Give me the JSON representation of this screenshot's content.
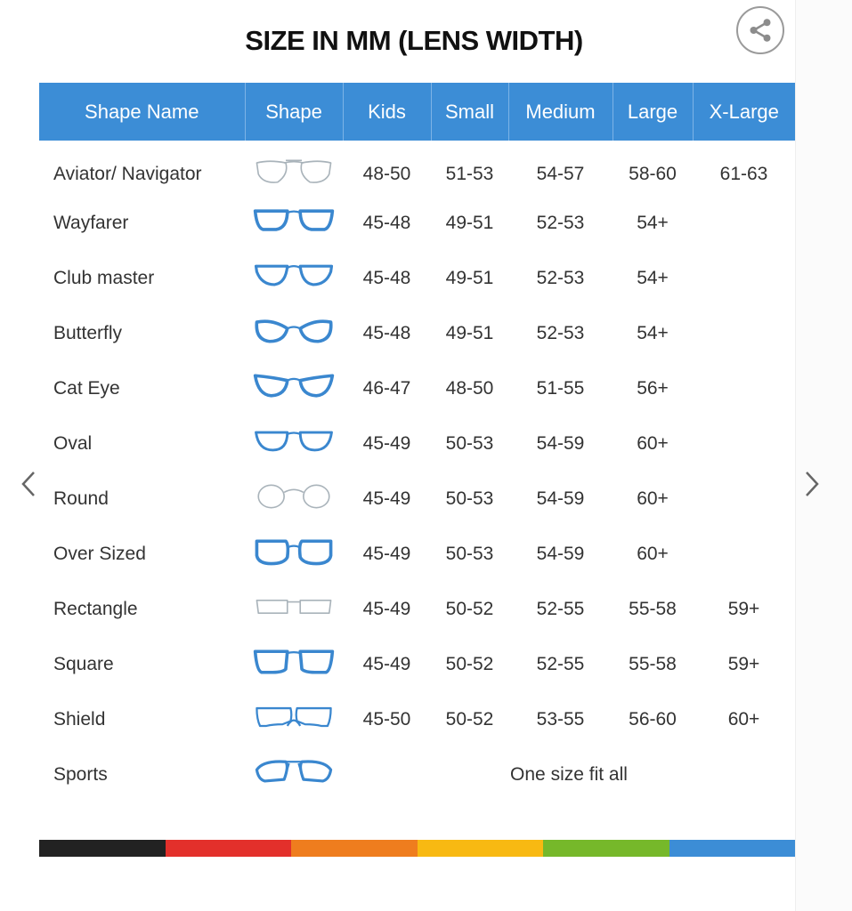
{
  "title": "SIZE IN MM (LENS WIDTH)",
  "icons": {
    "share": "share-icon",
    "prev": "chevron-left-icon",
    "next": "chevron-right-icon"
  },
  "colors": {
    "header": "#3c8dd6",
    "frame_blue": "#3a87cf",
    "frame_gray": "#a9b3ba",
    "stripe": [
      "#222222",
      "#e3302b",
      "#ef7d1e",
      "#f8b912",
      "#76b82a",
      "#3c8dd6"
    ]
  },
  "table": {
    "headers": [
      "Shape Name",
      "Shape",
      "Kids",
      "Small",
      "Medium",
      "Large",
      "X-Large"
    ],
    "rows": [
      {
        "name": "Aviator/ Navigator",
        "icon": "aviator",
        "kids": "48-50",
        "small": "51-53",
        "medium": "54-57",
        "large": "58-60",
        "xlarge": "61-63"
      },
      {
        "name": "Wayfarer",
        "icon": "wayfarer",
        "kids": "45-48",
        "small": "49-51",
        "medium": "52-53",
        "large": "54+",
        "xlarge": ""
      },
      {
        "name": "Club master",
        "icon": "clubmaster",
        "kids": "45-48",
        "small": "49-51",
        "medium": "52-53",
        "large": "54+",
        "xlarge": ""
      },
      {
        "name": "Butterfly",
        "icon": "butterfly",
        "kids": "45-48",
        "small": "49-51",
        "medium": "52-53",
        "large": "54+",
        "xlarge": ""
      },
      {
        "name": "Cat Eye",
        "icon": "cateye",
        "kids": "46-47",
        "small": "48-50",
        "medium": "51-55",
        "large": "56+",
        "xlarge": ""
      },
      {
        "name": "Oval",
        "icon": "oval",
        "kids": "45-49",
        "small": "50-53",
        "medium": "54-59",
        "large": "60+",
        "xlarge": ""
      },
      {
        "name": "Round",
        "icon": "round",
        "kids": "45-49",
        "small": "50-53",
        "medium": "54-59",
        "large": "60+",
        "xlarge": ""
      },
      {
        "name": "Over Sized",
        "icon": "oversized",
        "kids": "45-49",
        "small": "50-53",
        "medium": "54-59",
        "large": "60+",
        "xlarge": ""
      },
      {
        "name": "Rectangle",
        "icon": "rectangle",
        "kids": "45-49",
        "small": "50-52",
        "medium": "52-55",
        "large": "55-58",
        "xlarge": "59+"
      },
      {
        "name": "Square",
        "icon": "square",
        "kids": "45-49",
        "small": "50-52",
        "medium": "52-55",
        "large": "55-58",
        "xlarge": "59+"
      },
      {
        "name": "Shield",
        "icon": "shield",
        "kids": "45-50",
        "small": "50-52",
        "medium": "53-55",
        "large": "56-60",
        "xlarge": "60+"
      },
      {
        "name": "Sports",
        "icon": "sports",
        "all": "One size fit all"
      }
    ]
  }
}
